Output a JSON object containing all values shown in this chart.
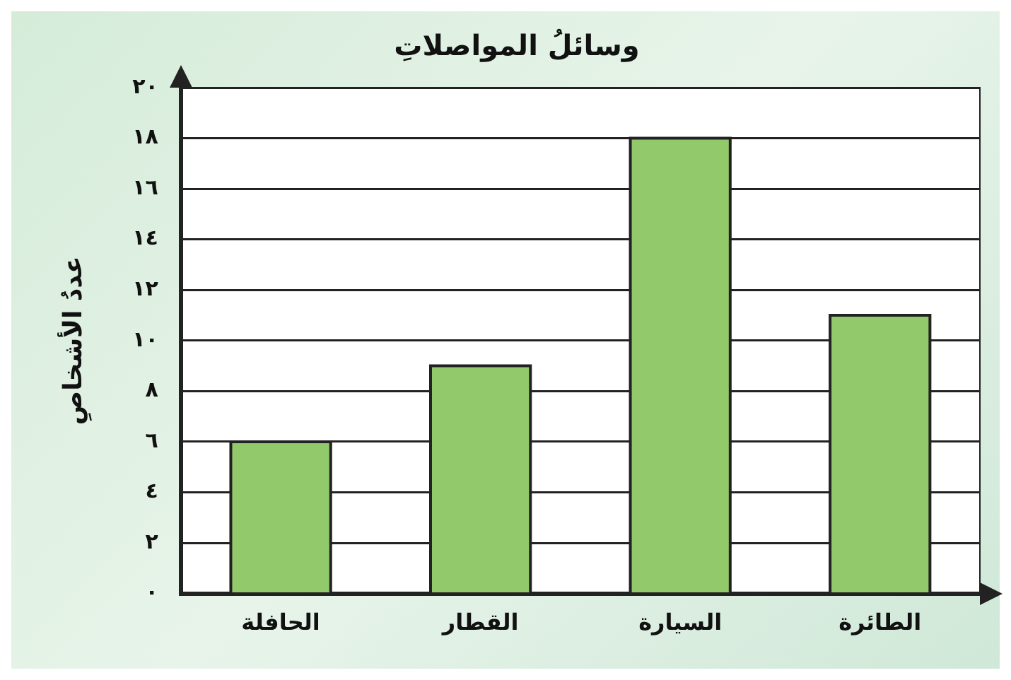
{
  "chart_data": {
    "type": "bar",
    "title": "وسائلُ المواصلاتِ",
    "ylabel": "عددُ الأشخاصِ",
    "categories": [
      "الحافلة",
      "القطار",
      "السيارة",
      "الطائرة"
    ],
    "values": [
      6,
      9,
      18,
      11
    ],
    "color": "#92c96b",
    "ylim": [
      0,
      20
    ],
    "yticks": [
      {
        "value": 0,
        "label": "٠"
      },
      {
        "value": 2,
        "label": "٢"
      },
      {
        "value": 4,
        "label": "٤"
      },
      {
        "value": 6,
        "label": "٦"
      },
      {
        "value": 8,
        "label": "٨"
      },
      {
        "value": 10,
        "label": "١٠"
      },
      {
        "value": 12,
        "label": "١٢"
      },
      {
        "value": 14,
        "label": "١٤"
      },
      {
        "value": 16,
        "label": "١٦"
      },
      {
        "value": 18,
        "label": "١٨"
      },
      {
        "value": 20,
        "label": "٢٠"
      }
    ],
    "grid": "y",
    "legend": false
  }
}
